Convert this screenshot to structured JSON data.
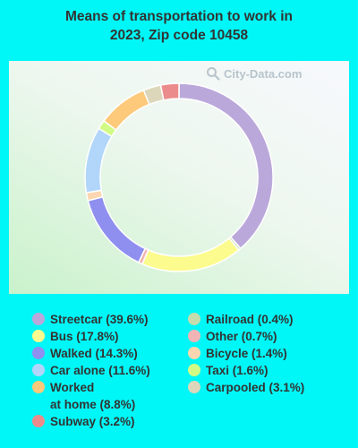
{
  "chart_data": {
    "type": "pie",
    "donut": true,
    "title_lines": [
      "Means of transportation to work in",
      "2023, Zip code 10458"
    ],
    "watermark": "City-Data.com",
    "slices": [
      {
        "label": "Streetcar",
        "value": 39.6,
        "color": "#bba8db",
        "legend_text": "Streetcar (39.6%)"
      },
      {
        "label": "Railroad",
        "value": 0.4,
        "color": "#c5dcac",
        "legend_text": "Railroad (0.4%)"
      },
      {
        "label": "Bus",
        "value": 17.8,
        "color": "#fbfb8e",
        "legend_text": "Bus (17.8%)"
      },
      {
        "label": "Other",
        "value": 0.7,
        "color": "#f2b4b4",
        "legend_text": "Other (0.7%)"
      },
      {
        "label": "Walked",
        "value": 14.3,
        "color": "#8f8ff0",
        "legend_text": "Walked (14.3%)"
      },
      {
        "label": "Bicycle",
        "value": 1.4,
        "color": "#fbd6b0",
        "legend_text": "Bicycle (1.4%)"
      },
      {
        "label": "Car alone",
        "value": 11.6,
        "color": "#b1d6fa",
        "legend_text": "Car alone (11.6%)"
      },
      {
        "label": "Taxi",
        "value": 1.6,
        "color": "#d2fb86",
        "legend_text": "Taxi (1.6%)"
      },
      {
        "label": "Worked at home",
        "value": 8.8,
        "color": "#fdc97a",
        "legend_text": "Worked\nat home (8.8%)"
      },
      {
        "label": "Carpooled",
        "value": 3.1,
        "color": "#dcd7bb",
        "legend_text": "Carpooled (3.1%)"
      },
      {
        "label": "Subway",
        "value": 3.2,
        "color": "#ec8b8b",
        "legend_text": "Subway (3.2%)"
      }
    ],
    "legend_columns": [
      [
        "Streetcar",
        "Bus",
        "Walked",
        "Car alone",
        "Worked at home",
        "Subway"
      ],
      [
        "Railroad",
        "Other",
        "Bicycle",
        "Taxi",
        "Carpooled"
      ]
    ]
  }
}
